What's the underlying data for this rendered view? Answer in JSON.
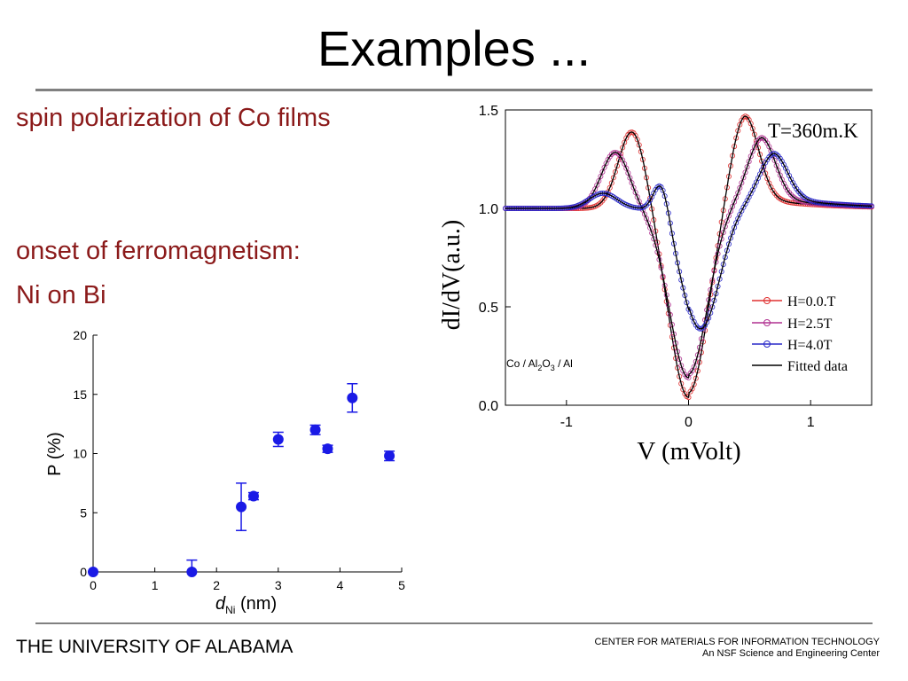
{
  "slide": {
    "title": "Examples ...",
    "bullet_1": "spin polarization of Co films",
    "bullet_2_line1": "onset of ferromagnetism:",
    "bullet_2_line2": "Ni on Bi",
    "footer_left": "THE UNIVERSITY OF ALABAMA",
    "footer_right_line1": "CENTER FOR MATERIALS FOR INFORMATION TECHNOLOGY",
    "footer_right_line2": "An NSF Science and Engineering Center"
  },
  "colors": {
    "title_text": "#000000",
    "bullet_text": "#8B1A1A",
    "rule": "#808080",
    "scatter_marker": "#1A1AE6",
    "series_h0": "#E03030",
    "series_h25": "#B03090",
    "series_h40": "#2828C8",
    "fitted": "#000000"
  },
  "chart_data": [
    {
      "type": "scatter",
      "xlabel_main": "d",
      "xlabel_sub": "Ni",
      "xlabel_unit": " (nm)",
      "ylabel": "P (%)",
      "xlim": [
        0,
        5
      ],
      "ylim": [
        0,
        20
      ],
      "xticks": [
        "0",
        "1",
        "2",
        "3",
        "4",
        "5"
      ],
      "yticks": [
        "0",
        "5",
        "10",
        "15",
        "20"
      ],
      "grid": false,
      "points": [
        {
          "x": 0.0,
          "y": 0.0,
          "err": 0.0
        },
        {
          "x": 1.6,
          "y": 0.0,
          "err": 1.0
        },
        {
          "x": 2.4,
          "y": 5.5,
          "err": 2.0
        },
        {
          "x": 2.6,
          "y": 6.4,
          "err": 0.3
        },
        {
          "x": 3.0,
          "y": 11.2,
          "err": 0.6
        },
        {
          "x": 3.6,
          "y": 12.0,
          "err": 0.4
        },
        {
          "x": 3.8,
          "y": 10.4,
          "err": 0.3
        },
        {
          "x": 4.2,
          "y": 14.7,
          "err": 1.2
        },
        {
          "x": 4.8,
          "y": 9.8,
          "err": 0.4
        }
      ]
    },
    {
      "type": "line",
      "ylabel": "dI/dV(a.u.)",
      "xlabel": "V (mVolt)",
      "annotation_temp": "T=360m.K",
      "annotation_sample": {
        "a": "Co / Al",
        "b": "2",
        "c": "O",
        "d": "3",
        "e": " / Al"
      },
      "xlim": [
        -1.5,
        1.5
      ],
      "ylim": [
        0.0,
        1.5
      ],
      "xticks": [
        "-1",
        "0",
        "1"
      ],
      "xtick_values": [
        -1,
        0,
        1
      ],
      "yticks": [
        "0.0",
        "0.5",
        "1.0",
        "1.5"
      ],
      "ytick_values": [
        0.0,
        0.5,
        1.0,
        1.5
      ],
      "grid": false,
      "legend_position": "bottom-right",
      "series": [
        {
          "name": "H=0.0.T",
          "color": "#E03030",
          "peak": 1.42,
          "peak_pos": 0.46,
          "min": 0.04,
          "shift": 0.0,
          "shoulder": 0.0
        },
        {
          "name": "H=2.5T",
          "color": "#B03090",
          "peak": 1.3,
          "peak_pos": 0.6,
          "min": 0.14,
          "shift": 0.0,
          "shoulder": 0.0
        },
        {
          "name": "H=4.0T",
          "color": "#2828C8",
          "peak": 1.22,
          "peak_pos": 0.7,
          "min": 0.37,
          "shift": 0.1,
          "shoulder": 0.96
        }
      ],
      "fitted_label": "Fitted data"
    }
  ]
}
